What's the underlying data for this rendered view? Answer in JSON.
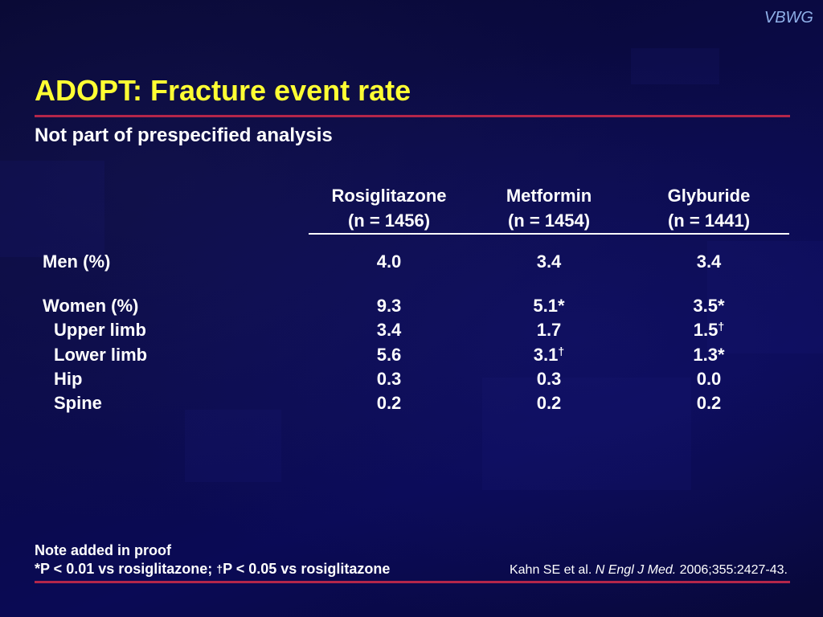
{
  "brand": "VBWG",
  "title": "ADOPT: Fracture event rate",
  "subtitle": "Not part of prespecified analysis",
  "columns": [
    {
      "name": "Rosiglitazone",
      "n": "(n = 1456)"
    },
    {
      "name": "Metformin",
      "n": "(n = 1454)"
    },
    {
      "name": "Glyburide",
      "n": "(n = 1441)"
    }
  ],
  "rows": [
    {
      "label": "Men (%)",
      "values": [
        {
          "v": "4.0",
          "m": ""
        },
        {
          "v": "3.4",
          "m": ""
        },
        {
          "v": "3.4",
          "m": ""
        }
      ]
    },
    {
      "label": "Women (%)",
      "values": [
        {
          "v": "9.3",
          "m": ""
        },
        {
          "v": "5.1*",
          "m": ""
        },
        {
          "v": "3.5*",
          "m": ""
        }
      ]
    },
    {
      "label": "Upper limb",
      "values": [
        {
          "v": "3.4",
          "m": ""
        },
        {
          "v": "1.7",
          "m": ""
        },
        {
          "v": "1.5",
          "m": "†"
        }
      ]
    },
    {
      "label": "Lower limb",
      "values": [
        {
          "v": "5.6",
          "m": ""
        },
        {
          "v": "3.1",
          "m": "†"
        },
        {
          "v": "1.3*",
          "m": ""
        }
      ]
    },
    {
      "label": "Hip",
      "values": [
        {
          "v": "0.3",
          "m": ""
        },
        {
          "v": "0.3",
          "m": ""
        },
        {
          "v": "0.0",
          "m": ""
        }
      ]
    },
    {
      "label": "Spine",
      "values": [
        {
          "v": "0.2",
          "m": ""
        },
        {
          "v": "0.2",
          "m": ""
        },
        {
          "v": "0.2",
          "m": ""
        }
      ]
    }
  ],
  "notes": {
    "line1": "Note added in proof",
    "line2_a": "*P < 0.01 vs rosiglitazone; ",
    "line2_mark": "†",
    "line2_b": "P < 0.05 vs rosiglitazone"
  },
  "citation": {
    "authors": "Kahn SE et al. ",
    "journal": "N Engl J Med.",
    "ref": " 2006;355:2427-43."
  },
  "colors": {
    "title": "#ffff33",
    "accent_rule": "#b4264a",
    "background": "#0a0a4a",
    "brand": "#8fb0e8"
  }
}
